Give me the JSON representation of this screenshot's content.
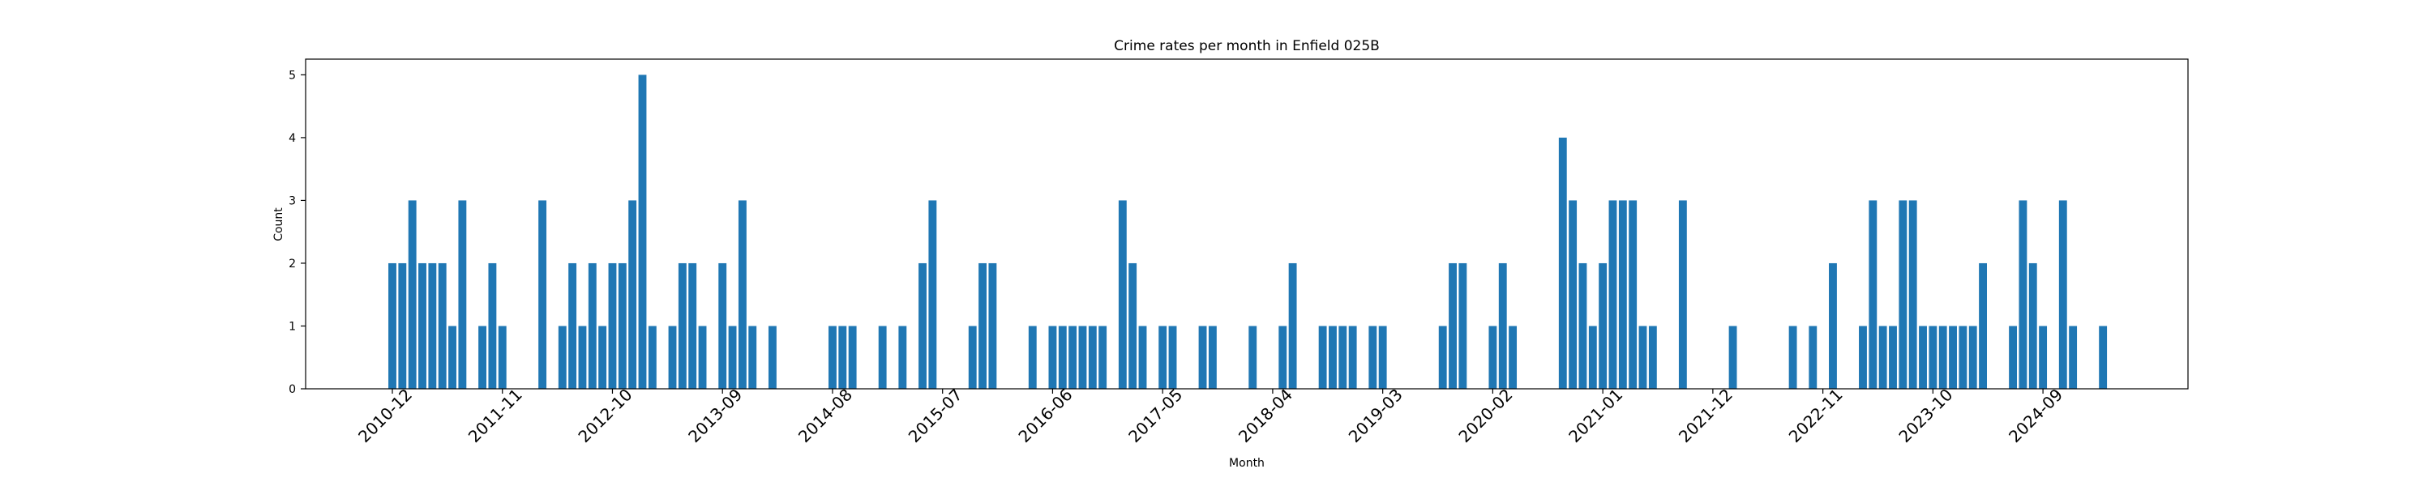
{
  "chart_data": {
    "type": "bar",
    "title": "Crime rates per month in Enfield 025B",
    "x_label": "Month",
    "y_label": "Count",
    "categories": [
      "2010-12",
      null,
      null,
      null,
      null,
      null,
      null,
      null,
      null,
      null,
      null,
      "2011-11",
      null,
      null,
      null,
      null,
      null,
      null,
      null,
      null,
      null,
      null,
      "2012-10",
      null,
      null,
      null,
      null,
      null,
      null,
      null,
      null,
      null,
      null,
      "2013-09",
      null,
      null,
      null,
      null,
      null,
      null,
      null,
      null,
      null,
      null,
      "2014-08",
      null,
      null,
      null,
      null,
      null,
      null,
      null,
      null,
      null,
      null,
      "2015-07",
      null,
      null,
      null,
      null,
      null,
      null,
      null,
      null,
      null,
      null,
      "2016-06",
      null,
      null,
      null,
      null,
      null,
      null,
      null,
      null,
      null,
      null,
      "2017-05",
      null,
      null,
      null,
      null,
      null,
      null,
      null,
      null,
      null,
      null,
      "2018-04",
      null,
      null,
      null,
      null,
      null,
      null,
      null,
      null,
      null,
      null,
      "2019-03",
      null,
      null,
      null,
      null,
      null,
      null,
      null,
      null,
      null,
      null,
      "2020-02",
      null,
      null,
      null,
      null,
      null,
      null,
      null,
      null,
      null,
      null,
      "2021-01",
      null,
      null,
      null,
      null,
      null,
      null,
      null,
      null,
      null,
      null,
      "2021-12",
      null,
      null,
      null,
      null,
      null,
      null,
      null,
      null,
      null,
      null,
      "2022-11",
      null,
      null,
      null,
      null,
      null,
      null,
      null,
      null,
      null,
      null,
      "2023-10",
      null,
      null,
      null,
      null,
      null,
      null,
      null,
      null,
      null,
      null,
      "2024-09",
      null,
      null,
      null,
      null,
      null,
      null
    ],
    "values": [
      2,
      2,
      3,
      2,
      2,
      2,
      1,
      3,
      0,
      1,
      2,
      1,
      0,
      0,
      0,
      3,
      0,
      1,
      2,
      1,
      2,
      1,
      2,
      2,
      3,
      5,
      1,
      0,
      1,
      2,
      2,
      1,
      0,
      2,
      1,
      3,
      1,
      0,
      1,
      0,
      0,
      0,
      0,
      0,
      1,
      1,
      1,
      0,
      0,
      1,
      0,
      1,
      0,
      2,
      3,
      0,
      0,
      0,
      1,
      2,
      2,
      0,
      0,
      0,
      1,
      0,
      1,
      1,
      1,
      1,
      1,
      1,
      0,
      3,
      2,
      1,
      0,
      1,
      1,
      0,
      0,
      1,
      1,
      0,
      0,
      0,
      1,
      0,
      0,
      1,
      2,
      0,
      0,
      1,
      1,
      1,
      1,
      0,
      1,
      1,
      0,
      0,
      0,
      0,
      0,
      1,
      2,
      2,
      0,
      0,
      1,
      2,
      1,
      0,
      0,
      0,
      0,
      4,
      3,
      2,
      1,
      2,
      3,
      3,
      3,
      1,
      1,
      0,
      0,
      3,
      0,
      0,
      0,
      0,
      1,
      0,
      0,
      0,
      0,
      0,
      1,
      0,
      1,
      0,
      2,
      0,
      0,
      1,
      3,
      1,
      1,
      3,
      3,
      1,
      1,
      1,
      1,
      1,
      1,
      2,
      0,
      0,
      1,
      3,
      2,
      1,
      0,
      3,
      1,
      0,
      0,
      1
    ],
    "color": "#1f77b4",
    "ylim": [
      0,
      5.25
    ],
    "yticks": [
      0,
      1,
      2,
      3,
      4,
      5
    ],
    "grid": false
  }
}
